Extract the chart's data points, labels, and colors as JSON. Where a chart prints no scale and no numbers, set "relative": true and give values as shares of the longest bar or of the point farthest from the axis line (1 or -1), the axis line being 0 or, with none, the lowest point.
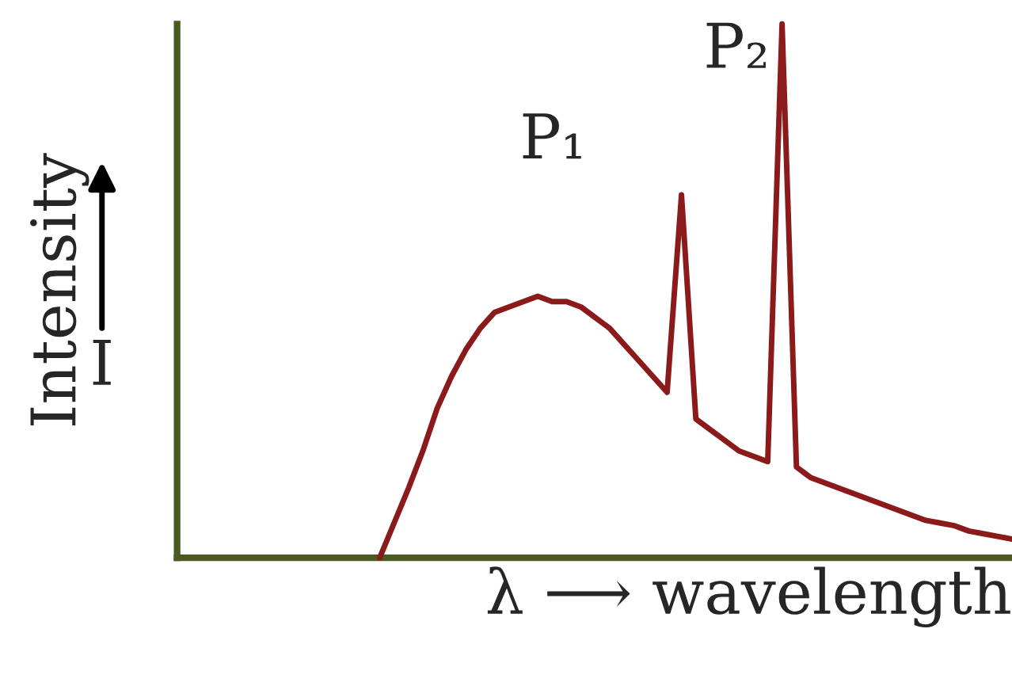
{
  "chart_data": {
    "type": "line",
    "relative": true,
    "xlabel": "λ ⟶ wavelength",
    "ylabel": "Intensity",
    "annotations": [
      "P₁",
      "P₂",
      "I"
    ],
    "categories": [
      null,
      null,
      null,
      null,
      null,
      null,
      null,
      null,
      null,
      null,
      null,
      null,
      null,
      null,
      null,
      null,
      null,
      null,
      null,
      null,
      null,
      null,
      null,
      null,
      null,
      null,
      null,
      null,
      null,
      null,
      null,
      null,
      null,
      null,
      null,
      null,
      null,
      null,
      null,
      null,
      null,
      null,
      null,
      null,
      null,
      null,
      null,
      null,
      null,
      null,
      null,
      null,
      null,
      null,
      null,
      null,
      null,
      null,
      null
    ],
    "series": [
      {
        "color": "#8b1a1a",
        "values": [
          null,
          null,
          null,
          null,
          null,
          null,
          null,
          null,
          null,
          null,
          null,
          null,
          null,
          null,
          0,
          0.065,
          0.13,
          0.2,
          0.28,
          0.34,
          0.39,
          0.43,
          0.46,
          0.47,
          0.48,
          0.49,
          0.48,
          0.48,
          0.47,
          0.45,
          0.43,
          0.4,
          0.37,
          0.34,
          0.31,
          0.68,
          0.26,
          0.24,
          0.22,
          0.2,
          0.19,
          0.18,
          1.0,
          0.17,
          0.15,
          0.14,
          0.13,
          0.12,
          0.11,
          0.1,
          0.09,
          0.08,
          0.07,
          0.065,
          0.06,
          0.05,
          0.045,
          0.04,
          0.035
        ]
      }
    ],
    "tick_labels": false,
    "marker": "none",
    "line_style": "solid"
  }
}
